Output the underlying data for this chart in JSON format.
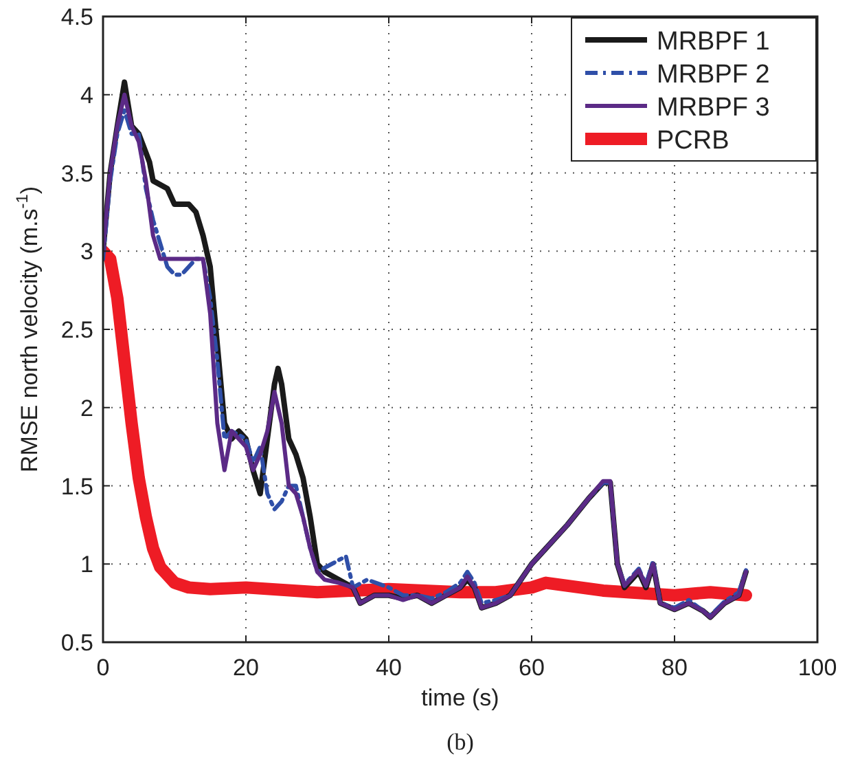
{
  "chart_data": {
    "type": "line",
    "xlabel": "time (s)",
    "ylabel": "RMSE north velocity (m.s$^{-1}$)",
    "annotations": [
      "(b)"
    ],
    "xlim": [
      0,
      100
    ],
    "xticks": [
      0,
      20,
      40,
      60,
      80,
      100
    ],
    "ylim": [
      0.5,
      4.5
    ],
    "yticks": [
      0.5,
      1,
      1.5,
      2,
      2.5,
      3,
      3.5,
      4,
      4.5
    ],
    "grid": true,
    "legend": "top right",
    "marker": "none",
    "series": [
      {
        "name": "MRBPF 1",
        "color": "#1a1a1a",
        "line_style": "solid",
        "x": [
          0,
          1,
          2,
          3,
          4,
          5,
          6.5,
          7,
          9,
          10,
          12,
          13,
          14,
          15,
          16,
          17,
          18,
          19,
          20,
          21,
          22,
          23,
          24,
          24.5,
          25,
          26,
          27,
          28,
          29,
          30,
          31,
          33,
          35,
          36,
          38,
          40,
          42,
          44,
          46,
          48,
          50,
          51,
          52,
          53,
          55,
          57,
          60,
          62,
          65,
          68,
          70,
          71,
          72,
          73,
          75,
          76,
          77,
          78,
          80,
          82,
          84,
          85,
          87,
          89,
          90
        ],
        "values": [
          3.0,
          3.5,
          3.8,
          4.08,
          3.8,
          3.75,
          3.57,
          3.45,
          3.4,
          3.3,
          3.3,
          3.25,
          3.1,
          2.9,
          2.4,
          1.9,
          1.8,
          1.85,
          1.8,
          1.6,
          1.45,
          1.8,
          2.15,
          2.25,
          2.15,
          1.8,
          1.7,
          1.55,
          1.3,
          1.0,
          0.95,
          0.9,
          0.85,
          0.75,
          0.8,
          0.8,
          0.78,
          0.8,
          0.75,
          0.8,
          0.85,
          0.9,
          0.85,
          0.72,
          0.75,
          0.8,
          1.0,
          1.1,
          1.25,
          1.42,
          1.52,
          1.52,
          1.0,
          0.85,
          0.95,
          0.85,
          1.0,
          0.75,
          0.71,
          0.75,
          0.7,
          0.66,
          0.75,
          0.8,
          0.95
        ]
      },
      {
        "name": "MRBPF 2",
        "color": "#2f4fa8",
        "line_style": "dashed",
        "x": [
          0,
          1,
          2,
          3,
          4,
          5,
          6,
          7,
          8,
          9,
          10,
          11,
          12,
          13,
          14,
          15,
          16,
          17,
          18,
          20,
          21,
          22,
          23,
          24,
          25,
          26,
          27,
          28,
          29,
          30,
          32,
          34,
          35,
          37,
          40,
          42,
          44,
          46,
          48,
          50,
          51,
          52,
          53,
          55,
          57,
          60,
          62,
          65,
          68,
          70,
          71,
          72,
          73,
          75,
          76,
          77,
          78,
          80,
          82,
          84,
          85,
          87,
          89,
          90
        ],
        "values": [
          2.95,
          3.45,
          3.75,
          3.9,
          3.75,
          3.75,
          3.4,
          3.2,
          3.05,
          2.9,
          2.85,
          2.85,
          2.9,
          2.95,
          2.95,
          2.7,
          2.3,
          1.8,
          1.85,
          1.8,
          1.65,
          1.75,
          1.45,
          1.35,
          1.4,
          1.5,
          1.5,
          1.3,
          1.1,
          0.95,
          1.0,
          1.05,
          0.85,
          0.9,
          0.85,
          0.8,
          0.8,
          0.78,
          0.82,
          0.88,
          0.95,
          0.88,
          0.75,
          0.77,
          0.8,
          1.0,
          1.1,
          1.25,
          1.42,
          1.52,
          1.52,
          1.0,
          0.87,
          0.97,
          0.87,
          1.02,
          0.75,
          0.72,
          0.77,
          0.7,
          0.67,
          0.76,
          0.82,
          0.96
        ]
      },
      {
        "name": "MRBPF 3",
        "color": "#5b2a86",
        "line_style": "solid",
        "x": [
          0,
          1,
          2,
          3,
          4,
          5,
          6,
          7,
          8,
          10,
          12,
          14,
          15,
          16,
          17,
          18,
          20,
          21,
          22,
          23,
          24,
          25,
          26,
          27,
          28,
          29,
          30,
          31,
          33,
          35,
          36,
          38,
          40,
          42,
          44,
          46,
          48,
          50,
          51,
          52,
          53,
          55,
          57,
          60,
          62,
          65,
          68,
          70,
          71,
          72,
          73,
          75,
          76,
          77,
          78,
          80,
          82,
          84,
          85,
          87,
          89,
          90
        ],
        "values": [
          3.0,
          3.5,
          3.8,
          4.0,
          3.8,
          3.7,
          3.45,
          3.1,
          2.95,
          2.95,
          2.95,
          2.95,
          2.6,
          1.9,
          1.6,
          1.85,
          1.75,
          1.6,
          1.7,
          1.85,
          2.1,
          1.9,
          1.5,
          1.45,
          1.3,
          1.1,
          0.95,
          0.9,
          0.88,
          0.85,
          0.75,
          0.8,
          0.8,
          0.77,
          0.8,
          0.75,
          0.8,
          0.85,
          0.92,
          0.85,
          0.72,
          0.75,
          0.8,
          1.0,
          1.1,
          1.25,
          1.42,
          1.53,
          1.53,
          1.0,
          0.86,
          0.96,
          0.86,
          1.0,
          0.75,
          0.71,
          0.75,
          0.7,
          0.66,
          0.75,
          0.8,
          0.95
        ]
      },
      {
        "name": "PCRB",
        "color": "#ee1c25",
        "line_style": "solid",
        "x": [
          0,
          1,
          2,
          3,
          4,
          5,
          6,
          7,
          8,
          10,
          12,
          15,
          20,
          30,
          40,
          50,
          55,
          60,
          62,
          70,
          80,
          85,
          90
        ],
        "values": [
          3.0,
          2.95,
          2.7,
          2.3,
          1.9,
          1.55,
          1.3,
          1.1,
          0.98,
          0.88,
          0.85,
          0.84,
          0.85,
          0.82,
          0.84,
          0.82,
          0.82,
          0.85,
          0.88,
          0.83,
          0.8,
          0.82,
          0.8
        ]
      }
    ]
  }
}
